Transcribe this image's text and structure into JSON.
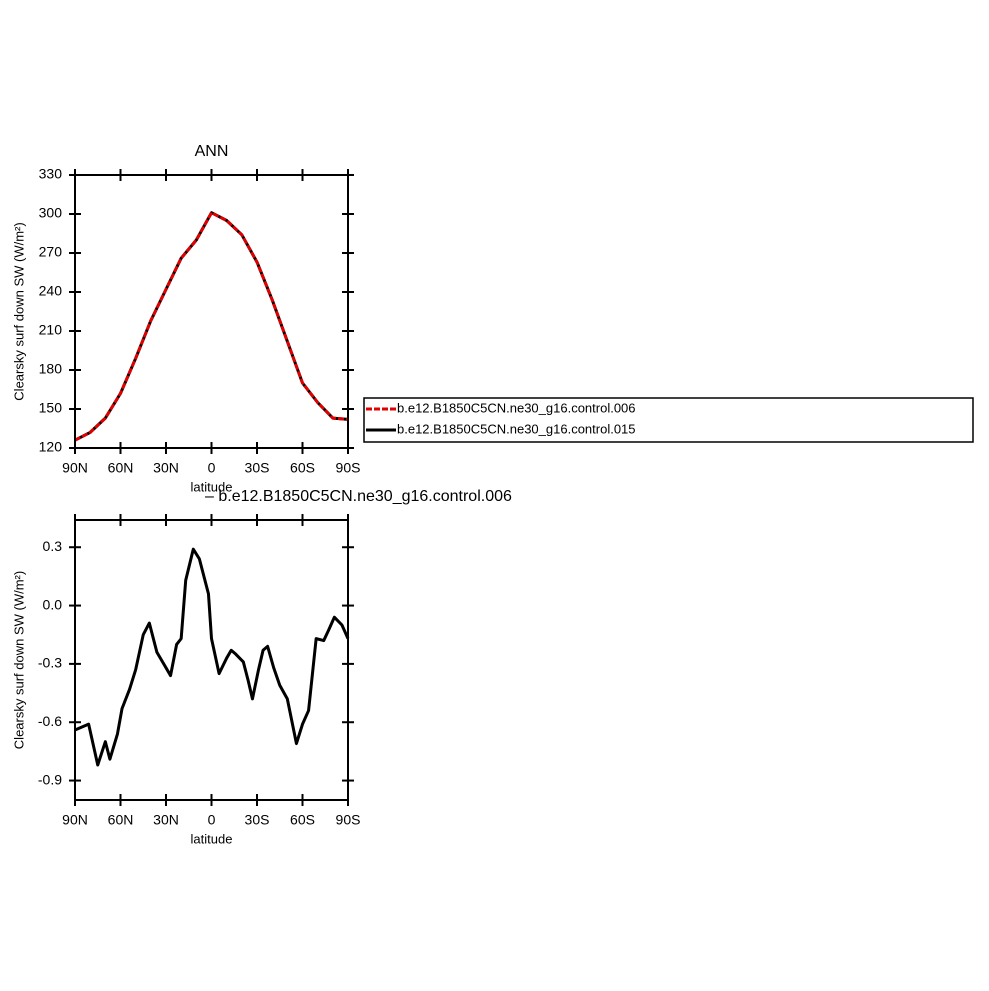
{
  "chart_data": [
    {
      "type": "line",
      "title": "ANN",
      "xlabel": "latitude",
      "ylabel": "Clearsky surf down SW (W/m²)",
      "x": [
        90,
        80,
        70,
        60,
        50,
        40,
        30,
        20,
        10,
        0,
        -10,
        -20,
        -30,
        -40,
        -50,
        -60,
        -70,
        -80,
        -90
      ],
      "series": [
        {
          "name": "b.e12.B1850C5CN.ne30_g16.control.006",
          "color": "#e00000",
          "linestyle": "dashed",
          "values": [
            126,
            132,
            143,
            162,
            189,
            218,
            242,
            266,
            280,
            301,
            295,
            284,
            263,
            234,
            202,
            170,
            155,
            143,
            142
          ]
        },
        {
          "name": "b.e12.B1850C5CN.ne30_g16.control.015",
          "color": "#000000",
          "linestyle": "solid",
          "values": [
            126,
            132,
            143,
            162,
            189,
            218,
            242,
            266,
            280,
            301,
            295,
            284,
            263,
            234,
            202,
            170,
            155,
            143,
            142
          ]
        }
      ],
      "xlim": [
        90,
        -90
      ],
      "xticks": [
        {
          "value": 90,
          "label": "90N"
        },
        {
          "value": 60,
          "label": "60N"
        },
        {
          "value": 30,
          "label": "30N"
        },
        0,
        {
          "value": -30,
          "label": "30S"
        },
        {
          "value": -60,
          "label": "60S"
        },
        {
          "value": -90,
          "label": "90S"
        }
      ],
      "ylim": [
        120,
        330
      ],
      "yticks": [
        120,
        150,
        180,
        210,
        240,
        270,
        300,
        330
      ],
      "legend": true
    },
    {
      "type": "line",
      "title": "– b.e12.B1850C5CN.ne30_g16.control.006",
      "xlabel": "latitude",
      "ylabel": "Clearsky surf down SW (W/m²)",
      "x": [
        90,
        81,
        75,
        70,
        67,
        62,
        59,
        54,
        50,
        45,
        41,
        36,
        33,
        27,
        23,
        20,
        17,
        12,
        8,
        2,
        0,
        -5,
        -10,
        -13,
        -16,
        -21,
        -24,
        -27,
        -31,
        -34,
        -37,
        -41,
        -45,
        -50,
        -56,
        -60,
        -64,
        -69,
        -74,
        -77,
        -81,
        -86,
        -90
      ],
      "series": [
        {
          "color": "#000000",
          "linestyle": "solid",
          "values": [
            -0.64,
            -0.61,
            -0.82,
            -0.7,
            -0.79,
            -0.66,
            -0.53,
            -0.43,
            -0.33,
            -0.15,
            -0.09,
            -0.24,
            -0.28,
            -0.36,
            -0.2,
            -0.17,
            0.13,
            0.29,
            0.24,
            0.06,
            -0.17,
            -0.35,
            -0.27,
            -0.23,
            -0.25,
            -0.29,
            -0.38,
            -0.48,
            -0.33,
            -0.23,
            -0.21,
            -0.32,
            -0.41,
            -0.48,
            -0.71,
            -0.61,
            -0.54,
            -0.17,
            -0.18,
            -0.13,
            -0.06,
            -0.1,
            -0.17
          ]
        }
      ],
      "xlim": [
        90,
        -90
      ],
      "xticks": [
        {
          "value": 90,
          "label": "90N"
        },
        {
          "value": 60,
          "label": "60N"
        },
        {
          "value": 30,
          "label": "30N"
        },
        0,
        {
          "value": -30,
          "label": "30S"
        },
        {
          "value": -60,
          "label": "60S"
        },
        {
          "value": -90,
          "label": "90S"
        }
      ],
      "ylim": [
        -1.0,
        0.44
      ],
      "yticks": [
        -0.9,
        -0.6,
        -0.3,
        {
          "value": 0,
          "label": "0.0"
        },
        0.3
      ],
      "legend": false
    }
  ]
}
